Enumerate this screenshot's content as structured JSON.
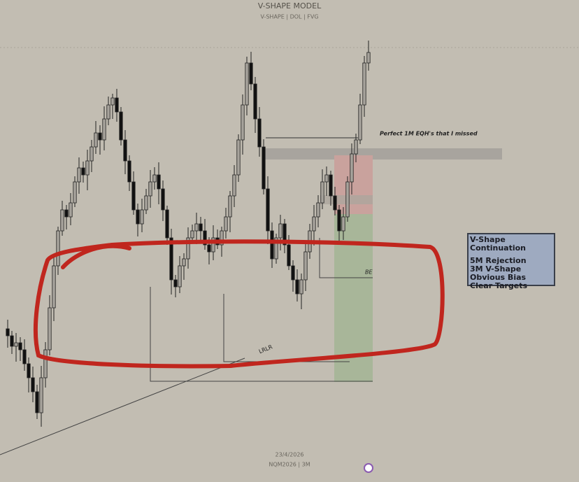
{
  "header": {
    "title": "V-SHAPE MODEL",
    "subtitle": "V-SHAPE | DOL | FVG"
  },
  "annotations": {
    "eqh": "Perfect 1M EQH's that I missed",
    "be": "BE",
    "lrlr": "LRLR"
  },
  "info_box": {
    "title": "V-Shape Continuation",
    "items": [
      "5M Rejection",
      "3M V-Shape",
      "Obvious Bias",
      "Clear Targets"
    ]
  },
  "footer": {
    "date": "23/4/2026",
    "symbol": "NQM2026 | 3M"
  }
}
